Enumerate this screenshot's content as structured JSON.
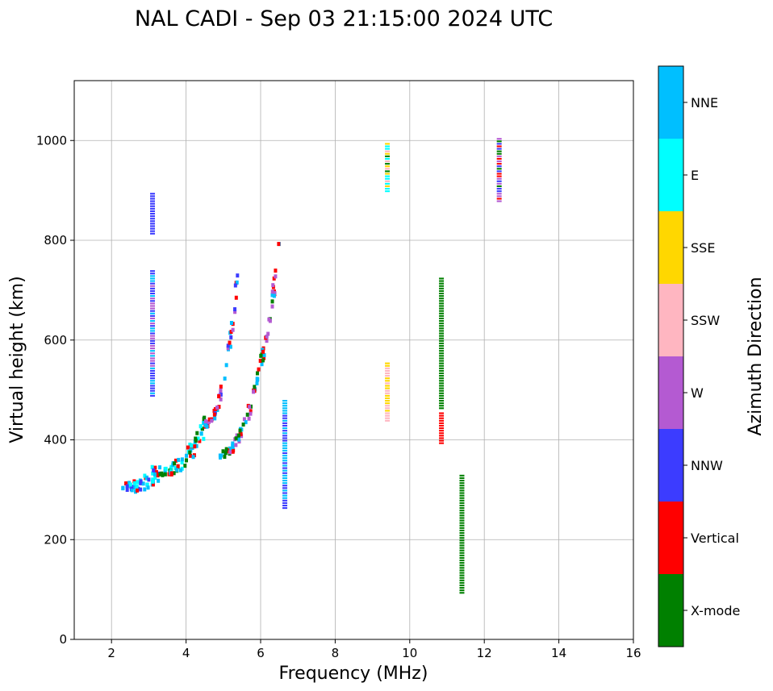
{
  "chart_data": {
    "type": "scatter",
    "title": "NAL CADI - Sep 03 21:15:00 2024 UTC",
    "xlabel": "Frequency (MHz)",
    "ylabel": "Virtual height (km)",
    "xlim": [
      1,
      16
    ],
    "ylim": [
      0,
      1120
    ],
    "xticks": [
      2,
      4,
      6,
      8,
      10,
      12,
      14,
      16
    ],
    "yticks": [
      0,
      200,
      400,
      600,
      800,
      1000
    ],
    "grid": true,
    "colorbar": {
      "label": "Azimuth Direction",
      "categories": [
        {
          "name": "X-mode",
          "color": "#008000"
        },
        {
          "name": "Vertical",
          "color": "#ff0000"
        },
        {
          "name": "NNW",
          "color": "#3c3cff"
        },
        {
          "name": "W",
          "color": "#b45ad2"
        },
        {
          "name": "SSW",
          "color": "#ffb6c1"
        },
        {
          "name": "SSE",
          "color": "#ffd700"
        },
        {
          "name": "E",
          "color": "#00ffff"
        },
        {
          "name": "NNE",
          "color": "#00bfff"
        }
      ]
    },
    "segments": [
      {
        "label": "F trace low",
        "dir": [
          "Vertical",
          "E",
          "NNE",
          "NNW"
        ],
        "freq": [
          2.3,
          3.3
        ],
        "h": [
          305,
          335
        ]
      },
      {
        "label": "F trace mid",
        "dir": [
          "Vertical",
          "E",
          "NNE",
          "X-mode"
        ],
        "freq": [
          3.3,
          4.5
        ],
        "h": [
          335,
          430
        ]
      },
      {
        "label": "F trace high",
        "dir": [
          "Vertical",
          "NNE",
          "W",
          "NNW"
        ],
        "freq": [
          4.5,
          5.4
        ],
        "h": [
          430,
          740
        ]
      },
      {
        "label": "X trace",
        "dir": [
          "X-mode",
          "NNE",
          "W",
          "Vertical"
        ],
        "freq": [
          4.9,
          6.5
        ],
        "h": [
          370,
          780
        ]
      },
      {
        "label": "Spread 3.1 MHz upper",
        "dir": [
          "NNW"
        ],
        "freq": [
          3.1,
          3.1
        ],
        "h": [
          810,
          895
        ]
      },
      {
        "label": "Spread 3.1 MHz mid",
        "dir": [
          "NNW",
          "W",
          "NNE"
        ],
        "freq": [
          3.1,
          3.1
        ],
        "h": [
          485,
          740
        ]
      },
      {
        "label": "Spread 10.85 MHz",
        "dir": [
          "X-mode"
        ],
        "freq": [
          10.85,
          10.85
        ],
        "h": [
          460,
          725
        ]
      },
      {
        "label": "Spread 10.85 MHz red",
        "dir": [
          "Vertical"
        ],
        "freq": [
          10.85,
          10.85
        ],
        "h": [
          390,
          455
        ]
      },
      {
        "label": "Spread 11.4 MHz",
        "dir": [
          "X-mode"
        ],
        "freq": [
          11.4,
          11.4
        ],
        "h": [
          90,
          330
        ]
      },
      {
        "label": "Spread 12.4 MHz",
        "dir": [
          "Vertical",
          "NNW",
          "W",
          "X-mode"
        ],
        "freq": [
          12.4,
          12.4
        ],
        "h": [
          875,
          1005
        ]
      },
      {
        "label": "Spread 9.4 MHz upper",
        "dir": [
          "X-mode",
          "SSE",
          "E",
          "SSW"
        ],
        "freq": [
          9.4,
          9.4
        ],
        "h": [
          895,
          995
        ]
      },
      {
        "label": "Spread 9.4 MHz lower",
        "dir": [
          "SSE",
          "SSW"
        ],
        "freq": [
          9.4,
          9.4
        ],
        "h": [
          435,
          555
        ]
      },
      {
        "label": "Spread 6.65 MHz",
        "dir": [
          "NNE",
          "NNW"
        ],
        "freq": [
          6.65,
          6.65
        ],
        "h": [
          260,
          480
        ]
      }
    ]
  }
}
